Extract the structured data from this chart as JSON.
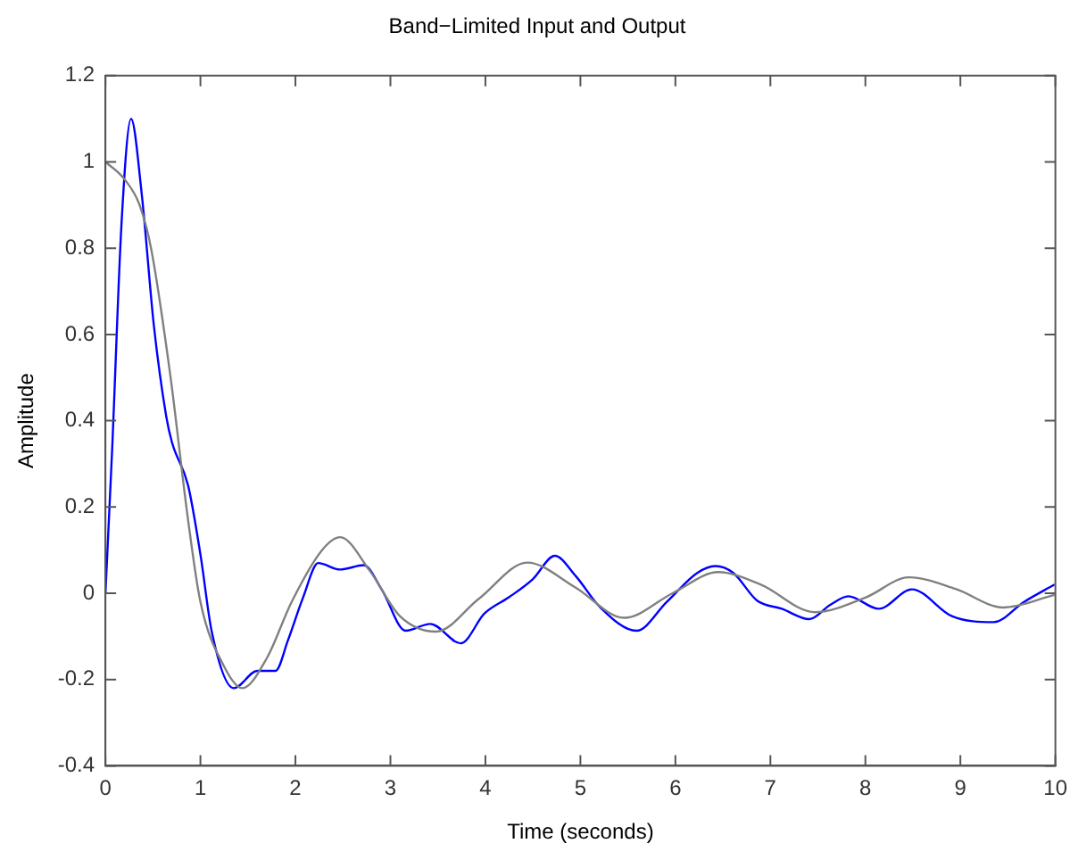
{
  "chart_data": {
    "type": "line",
    "title": "Band−Limited Input and Output",
    "xlabel": "Time (seconds)",
    "ylabel": "Amplitude",
    "xlim": [
      0,
      10
    ],
    "ylim": [
      -0.4,
      1.2
    ],
    "xticks": [
      0,
      1,
      2,
      3,
      4,
      5,
      6,
      7,
      8,
      9,
      10
    ],
    "yticks": [
      -0.4,
      -0.2,
      0,
      0.2,
      0.4,
      0.6,
      0.8,
      1,
      1.2
    ],
    "grid": false,
    "legend": false,
    "marker": "none",
    "line_style": "solid",
    "series": [
      {
        "color": "#808080",
        "x": [
          0,
          0.2,
          0.36,
          0.48,
          0.68,
          0.87,
          1.0,
          1.25,
          1.44,
          1.7,
          1.96,
          2.28,
          2.47,
          2.78,
          3.1,
          3.48,
          3.93,
          4.44,
          4.95,
          5.46,
          5.97,
          6.45,
          6.9,
          7.47,
          8.0,
          8.46,
          8.95,
          9.45,
          9.99
        ],
        "values": [
          1.0,
          0.96,
          0.9,
          0.8,
          0.51,
          0.17,
          -0.02,
          -0.17,
          -0.22,
          -0.15,
          -0.02,
          0.1,
          0.13,
          0.053,
          -0.053,
          -0.089,
          -0.013,
          0.071,
          0.013,
          -0.057,
          0,
          0.049,
          0.02,
          -0.044,
          -0.01,
          0.037,
          0.01,
          -0.033,
          -0.004
        ]
      },
      {
        "color": "#0000ff",
        "x": [
          0,
          0.07,
          0.17,
          0.27,
          0.38,
          0.51,
          0.64,
          0.7,
          0.87,
          1.0,
          1.12,
          1.35,
          1.6,
          1.79,
          1.92,
          2.08,
          2.24,
          2.47,
          2.72,
          2.91,
          3.16,
          3.42,
          3.74,
          3.99,
          4.25,
          4.5,
          4.73,
          4.95,
          5.21,
          5.59,
          5.91,
          6.23,
          6.42,
          6.61,
          6.86,
          7.12,
          7.41,
          7.63,
          7.82,
          8.14,
          8.49,
          8.91,
          9.35,
          9.67,
          9.99
        ],
        "values": [
          0,
          0.33,
          0.86,
          1.1,
          0.93,
          0.62,
          0.41,
          0.35,
          0.25,
          0.09,
          -0.09,
          -0.22,
          -0.18,
          -0.18,
          -0.11,
          -0.01,
          0.07,
          0.055,
          0.065,
          0.008,
          -0.087,
          -0.071,
          -0.116,
          -0.047,
          -0.009,
          0.033,
          0.087,
          0.04,
          -0.033,
          -0.087,
          -0.02,
          0.047,
          0.063,
          0.047,
          -0.017,
          -0.036,
          -0.06,
          -0.027,
          -0.007,
          -0.036,
          0.009,
          -0.053,
          -0.067,
          -0.02,
          0.02
        ]
      }
    ]
  }
}
